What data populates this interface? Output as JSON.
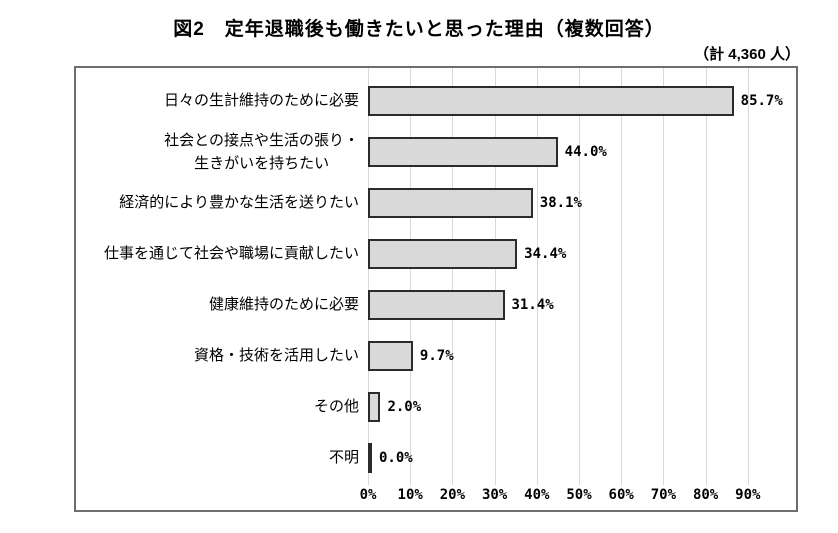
{
  "figure": {
    "title": "図2　定年退職後も働きたいと思った理由（複数回答）",
    "total_label": "（計 4,360 人）"
  },
  "chart_data": {
    "type": "bar",
    "orientation": "horizontal",
    "title": "図2　定年退職後も働きたいと思った理由（複数回答）",
    "annotation": "（計 4,360 人）",
    "categories": [
      "日々の生計維持のために必要",
      "社会との接点や生活の張り・\n生きがいを持ちたい",
      "経済的により豊かな生活を送りたい",
      "仕事を通じて社会や職場に貢献したい",
      "健康維持のために必要",
      "資格・技術を活用したい",
      "その他",
      "不明"
    ],
    "values": [
      85.7,
      44.0,
      38.1,
      34.4,
      31.4,
      9.7,
      2.0,
      0.0
    ],
    "value_labels": [
      "85.7%",
      "44.0%",
      "38.1%",
      "34.4%",
      "31.4%",
      "9.7%",
      "2.0%",
      "0.0%"
    ],
    "x_ticks": [
      "0%",
      "10%",
      "20%",
      "30%",
      "40%",
      "50%",
      "60%",
      "70%",
      "80%",
      "90%"
    ],
    "xlim": [
      0,
      90
    ],
    "grid": true,
    "legend": "none",
    "colors": {
      "bar_fill": "#d9d9d9",
      "bar_border": "#2b2b2b",
      "gridline": "#d9d9d9",
      "box_border": "#6e6e6e",
      "text": "#000000",
      "background": "#ffffff"
    }
  }
}
